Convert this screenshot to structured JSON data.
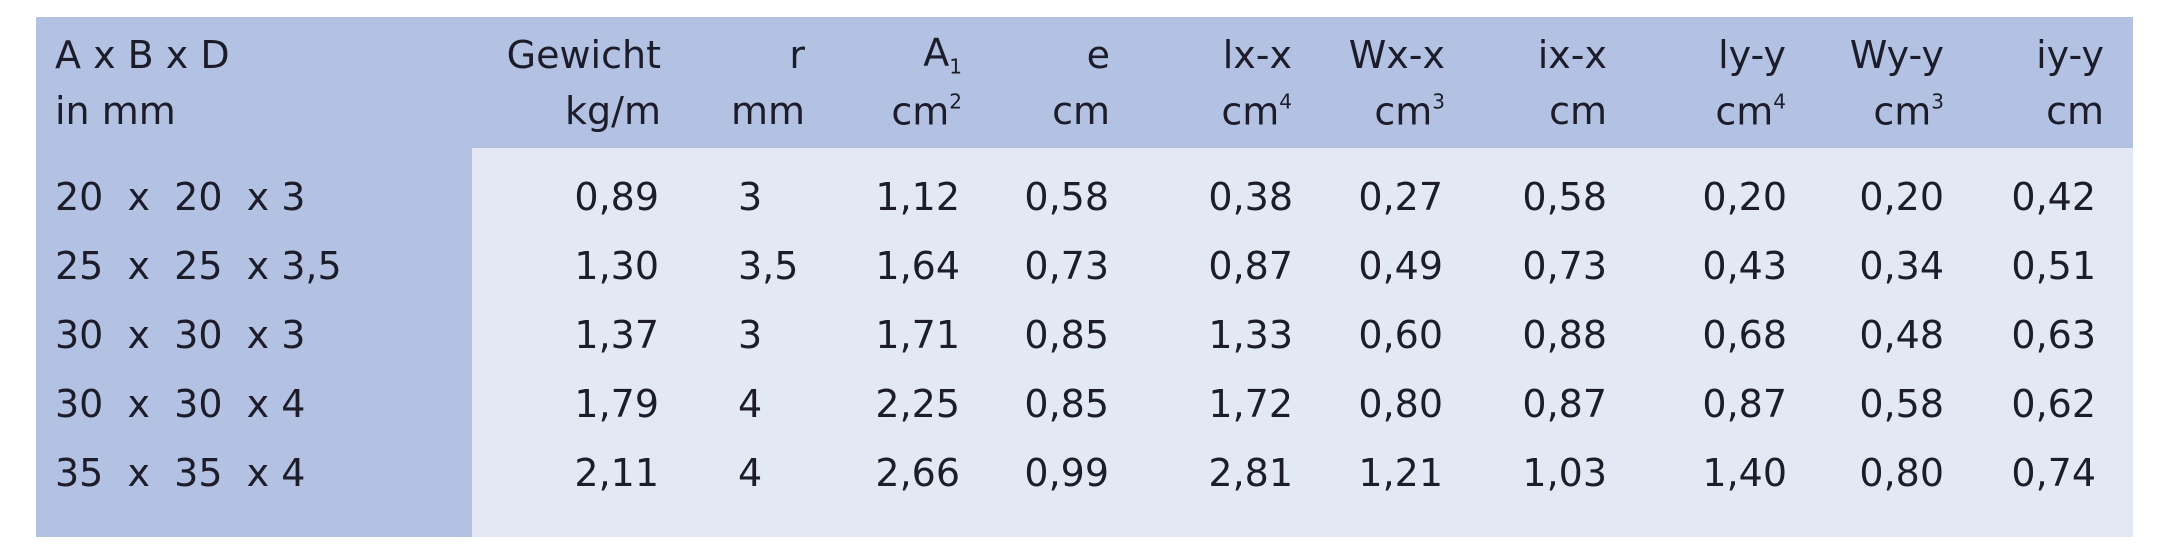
{
  "table": {
    "headers": [
      {
        "top": "A x B x D",
        "bottom": "in mm"
      },
      {
        "top": "Gewicht",
        "bottom": "kg/m"
      },
      {
        "top": "r",
        "bottom": "mm"
      },
      {
        "top": "A",
        "top_sub": "1",
        "bottom": "cm",
        "bottom_sup": "2"
      },
      {
        "top": "e",
        "bottom": "cm"
      },
      {
        "top": "lx-x",
        "bottom": "cm",
        "bottom_sup": "4"
      },
      {
        "top": "Wx-x",
        "bottom": "cm",
        "bottom_sup": "3"
      },
      {
        "top": "ix-x",
        "bottom": "cm"
      },
      {
        "top": "ly-y",
        "bottom": "cm",
        "bottom_sup": "4"
      },
      {
        "top": "Wy-y",
        "bottom": "cm",
        "bottom_sup": "3"
      },
      {
        "top": "iy-y",
        "bottom": "cm"
      }
    ],
    "rows": [
      [
        "20  x  20  x 3",
        "0,89",
        "3",
        "1,12",
        "0,58",
        "0,38",
        "0,27",
        "0,58",
        "0,20",
        "0,20",
        "0,42"
      ],
      [
        "25  x  25  x 3,5",
        "1,30",
        "3,5",
        "1,64",
        "0,73",
        "0,87",
        "0,49",
        "0,73",
        "0,43",
        "0,34",
        "0,51"
      ],
      [
        "30  x  30  x 3",
        "1,37",
        "3",
        "1,71",
        "0,85",
        "1,33",
        "0,60",
        "0,88",
        "0,68",
        "0,48",
        "0,63"
      ],
      [
        "30  x  30  x 4",
        "1,79",
        "4",
        "2,25",
        "0,85",
        "1,72",
        "0,80",
        "0,87",
        "0,87",
        "0,58",
        "0,62"
      ],
      [
        "35  x  35  x 4",
        "2,11",
        "4",
        "2,66",
        "0,99",
        "2,81",
        "1,21",
        "1,03",
        "1,40",
        "0,80",
        "0,74"
      ]
    ]
  }
}
